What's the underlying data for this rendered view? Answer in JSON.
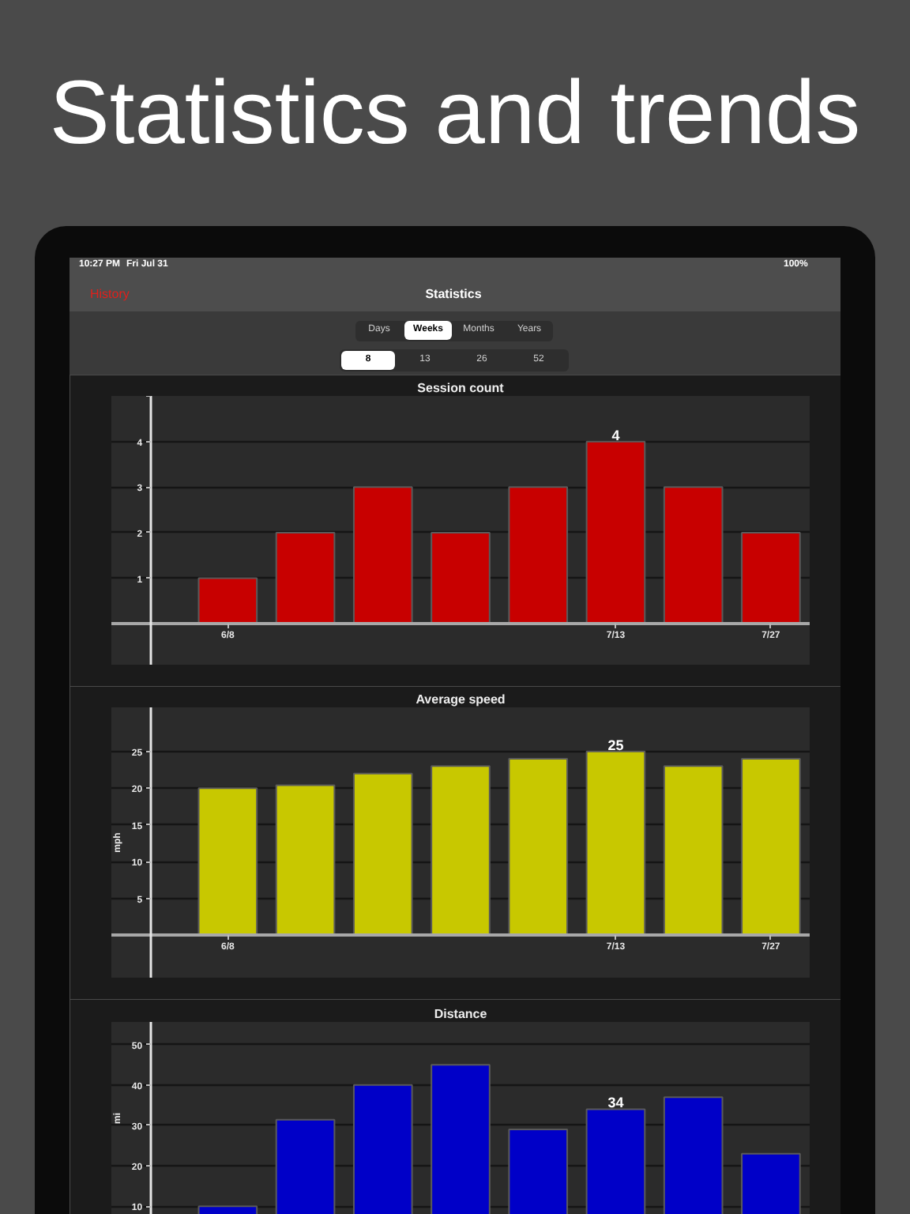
{
  "chart_data": [
    {
      "type": "bar",
      "title": "Session count",
      "categories": [
        "6/8",
        null,
        null,
        null,
        null,
        "7/13",
        null,
        "7/27"
      ],
      "values": [
        1,
        2,
        3,
        2,
        3,
        4,
        3,
        2
      ],
      "color": "#c80000",
      "value_labels": [
        null,
        null,
        null,
        null,
        null,
        "4",
        null,
        null
      ],
      "ylim": [
        -0.9,
        5
      ],
      "yticks": [
        1,
        2,
        3,
        4,
        {
          "value": 5,
          "label": null
        }
      ],
      "grid": "y",
      "annotations": [
        "Statistics and trends",
        "10:27 PM",
        "Fri Jul 31",
        "100%",
        "History",
        "Statistics",
        "Days",
        "Weeks",
        "Months",
        "Years",
        "8",
        "13",
        "26",
        "52"
      ]
    },
    {
      "type": "bar",
      "title": "Average speed",
      "ylabel": "mph",
      "categories": [
        "6/8",
        null,
        null,
        null,
        null,
        "7/13",
        null,
        "7/27"
      ],
      "values": [
        20,
        20.4,
        22,
        23,
        24,
        25,
        23,
        24
      ],
      "color": "#c8c800",
      "value_labels": [
        null,
        null,
        null,
        null,
        null,
        "25",
        null,
        null
      ],
      "ylim": [
        -5.8,
        31
      ],
      "yticks": [
        5,
        10,
        15,
        20,
        25
      ],
      "grid": "y"
    },
    {
      "type": "bar",
      "title": "Distance",
      "ylabel": "mi",
      "categories": [
        null,
        null,
        null,
        null,
        null,
        null,
        null,
        null
      ],
      "values": [
        10,
        31.4,
        40,
        45,
        29,
        34,
        37,
        23
      ],
      "color": "#0000c8",
      "value_labels": [
        null,
        null,
        null,
        null,
        null,
        "34",
        null,
        null
      ],
      "ylim": [
        7.9,
        55.6
      ],
      "yticks": [
        10,
        20,
        30,
        40,
        50
      ],
      "grid": "y",
      "tick_labels": "y"
    }
  ]
}
